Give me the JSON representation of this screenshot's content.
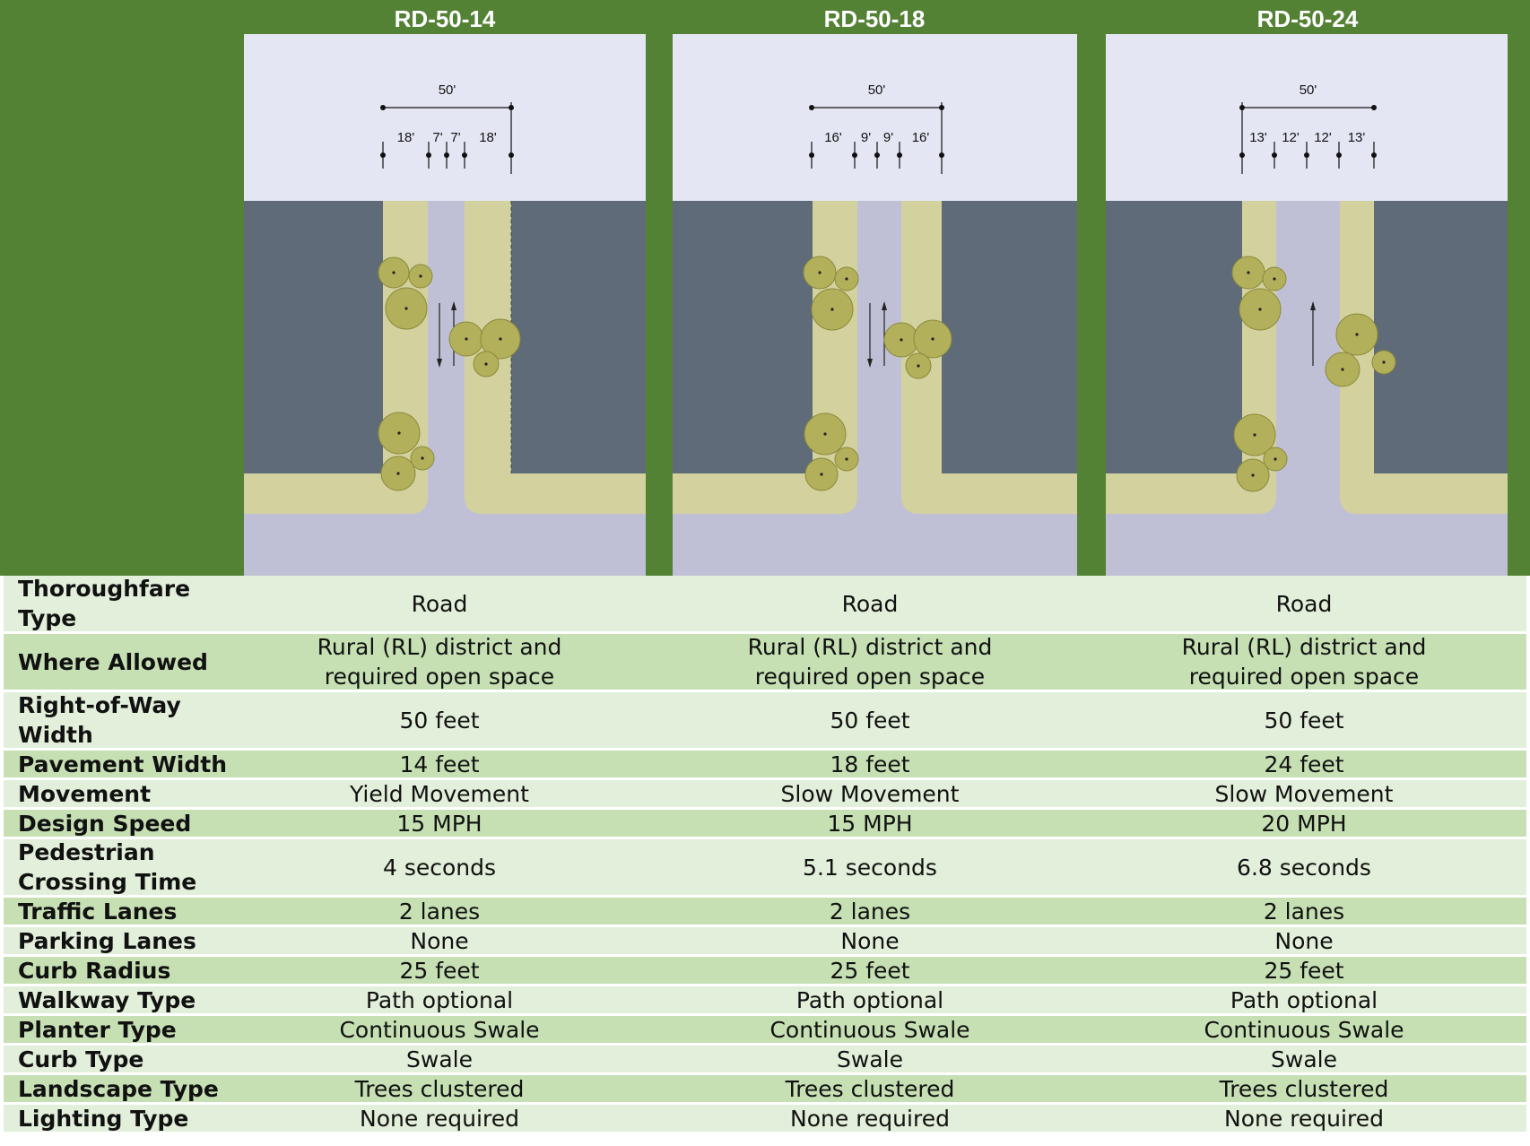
{
  "columns": [
    {
      "title": "RD-50-14",
      "row_total": "50'",
      "segments": [
        "18'",
        "7'",
        "7'",
        "18'"
      ]
    },
    {
      "title": "RD-50-18",
      "row_total": "50'",
      "segments": [
        "16'",
        "9'",
        "9'",
        "16'"
      ]
    },
    {
      "title": "RD-50-24",
      "row_total": "50'",
      "segments": [
        "13'",
        "12'",
        "12'",
        "13'"
      ]
    }
  ],
  "rows": [
    {
      "label": [
        "Thoroughfare",
        "Type"
      ],
      "values": [
        [
          "Road"
        ],
        [
          "Road"
        ],
        [
          "Road"
        ]
      ]
    },
    {
      "label": [
        "Where Allowed"
      ],
      "values": [
        [
          "Rural (RL) district and",
          "required open space"
        ],
        [
          "Rural (RL) district and",
          "required open space"
        ],
        [
          "Rural (RL) district and",
          "required open space"
        ]
      ]
    },
    {
      "label": [
        "Right-of-Way",
        "Width"
      ],
      "values": [
        [
          "50 feet"
        ],
        [
          "50 feet"
        ],
        [
          "50 feet"
        ]
      ]
    },
    {
      "label": [
        "Pavement Width"
      ],
      "values": [
        [
          "14 feet"
        ],
        [
          "18 feet"
        ],
        [
          "24 feet"
        ]
      ]
    },
    {
      "label": [
        "Movement"
      ],
      "values": [
        [
          "Yield Movement"
        ],
        [
          "Slow Movement"
        ],
        [
          "Slow Movement"
        ]
      ]
    },
    {
      "label": [
        "Design Speed"
      ],
      "values": [
        [
          "15 MPH"
        ],
        [
          "15 MPH"
        ],
        [
          "20 MPH"
        ]
      ]
    },
    {
      "label": [
        "Pedestrian",
        "Crossing Time"
      ],
      "values": [
        [
          "4 seconds"
        ],
        [
          "5.1 seconds"
        ],
        [
          "6.8 seconds"
        ]
      ]
    },
    {
      "label": [
        "Traffic Lanes"
      ],
      "values": [
        [
          "2 lanes"
        ],
        [
          "2 lanes"
        ],
        [
          "2 lanes"
        ]
      ]
    },
    {
      "label": [
        "Parking Lanes"
      ],
      "values": [
        [
          "None"
        ],
        [
          "None"
        ],
        [
          "None"
        ]
      ]
    },
    {
      "label": [
        "Curb Radius"
      ],
      "values": [
        [
          "25 feet"
        ],
        [
          "25 feet"
        ],
        [
          "25 feet"
        ]
      ]
    },
    {
      "label": [
        "Walkway Type"
      ],
      "values": [
        [
          "Path optional"
        ],
        [
          "Path optional"
        ],
        [
          "Path optional"
        ]
      ]
    },
    {
      "label": [
        "Planter Type"
      ],
      "values": [
        [
          "Continuous Swale"
        ],
        [
          "Continuous Swale"
        ],
        [
          "Continuous Swale"
        ]
      ]
    },
    {
      "label": [
        "Curb Type"
      ],
      "values": [
        [
          "Swale"
        ],
        [
          "Swale"
        ],
        [
          "Swale"
        ]
      ]
    },
    {
      "label": [
        "Landscape Type"
      ],
      "values": [
        [
          "Trees clustered"
        ],
        [
          "Trees clustered"
        ],
        [
          "Trees clustered"
        ]
      ]
    },
    {
      "label": [
        "Lighting Type"
      ],
      "values": [
        [
          "None required"
        ],
        [
          "None required"
        ],
        [
          "None required"
        ]
      ]
    }
  ],
  "colors": {
    "header_green": "#548235",
    "row_light": "#e2efda",
    "row_dark": "#c6e0b4",
    "sky": "#e4e6f3",
    "block": "#5f6b78",
    "swale": "#d3d29f",
    "pavement": "#bfc0d6",
    "tree": "#b3b05c",
    "tree_edge": "#8a8a3a"
  }
}
